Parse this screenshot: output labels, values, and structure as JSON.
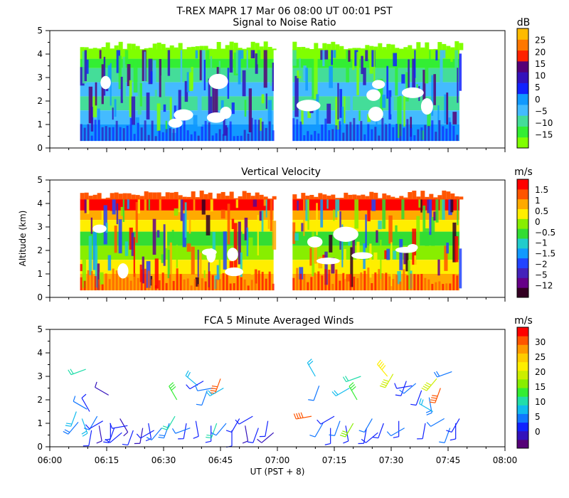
{
  "header": {
    "title": "T-REX   MAPR 17 Mar 06   08:00 UT   00:01   PST"
  },
  "colors": {
    "snr": [
      "#80ff00",
      "#33ee33",
      "#44dd99",
      "#44bbff",
      "#1199ff",
      "#1122ff",
      "#3311bb",
      "#550077",
      "#ff2200",
      "#ff7700",
      "#ffbb00"
    ],
    "velocity": [
      "#330022",
      "#660088",
      "#4422bb",
      "#2244ff",
      "#1199ff",
      "#22cccc",
      "#33dd33",
      "#88ee00",
      "#ffee00",
      "#ffaa00",
      "#ff5500",
      "#ff0000"
    ],
    "wind": [
      "#550077",
      "#3311bb",
      "#1122ff",
      "#1177ff",
      "#11bbee",
      "#22ddaa",
      "#33ee33",
      "#88ee00",
      "#ccee00",
      "#ffee00",
      "#ffcc00",
      "#ff9900",
      "#ff5500",
      "#ff0000"
    ]
  },
  "chart_data": [
    {
      "type": "heatmap",
      "title": "Signal to Noise Ratio",
      "xlabel": "",
      "ylabel": "",
      "x_ticks": [],
      "xlim": [
        "06:00",
        "08:00"
      ],
      "ylim": [
        0,
        5
      ],
      "y_ticks": [
        "0",
        "1",
        "2",
        "3",
        "4",
        "5"
      ],
      "data_gap": [
        "07:00",
        "07:05"
      ],
      "colorbar": {
        "unit": "dB",
        "labels": [
          "25",
          "20",
          "15",
          "10",
          "5",
          "0",
          "−5",
          "−10",
          "−15"
        ]
      }
    },
    {
      "type": "heatmap",
      "title": "Vertical Velocity",
      "xlabel": "",
      "ylabel": "Altitude (km)",
      "x_ticks": [],
      "xlim": [
        "06:00",
        "08:00"
      ],
      "ylim": [
        0,
        5
      ],
      "y_ticks": [
        "0",
        "1",
        "2",
        "3",
        "4",
        "5"
      ],
      "data_gap": [
        "07:00",
        "07:05"
      ],
      "colorbar": {
        "unit": "m/s",
        "labels": [
          "1.5",
          "1",
          "0.5",
          "0",
          "−0.5",
          "−1",
          "−1.5",
          "−2",
          "−5",
          "−12"
        ]
      }
    },
    {
      "type": "scatter",
      "title": "FCA 5 Minute Averaged Winds",
      "xlabel": "UT  (PST + 8)",
      "ylabel": "",
      "x_ticks": [
        "06:00",
        "06:15",
        "06:30",
        "06:45",
        "07:00",
        "07:15",
        "07:30",
        "07:45",
        "08:00"
      ],
      "xlim": [
        "06:00",
        "08:00"
      ],
      "ylim": [
        0,
        5
      ],
      "y_ticks": [
        "0",
        "1",
        "2",
        "3",
        "4",
        "5"
      ],
      "colorbar": {
        "unit": "m/s",
        "labels": [
          "30",
          "25",
          "20",
          "15",
          "10",
          "5",
          "0"
        ]
      },
      "barbs": [
        {
          "t": 7.0,
          "z": 1.5,
          "spd": 10,
          "dir": 200
        },
        {
          "t": 7.5,
          "z": 1.05,
          "spd": 8,
          "dir": 220
        },
        {
          "t": 8.5,
          "z": 1.2,
          "spd": 9,
          "dir": 160
        },
        {
          "t": 9.5,
          "z": 3.3,
          "spd": 12,
          "dir": 250
        },
        {
          "t": 9.8,
          "z": 1.6,
          "spd": 6,
          "dir": 300
        },
        {
          "t": 10.5,
          "z": 1.5,
          "spd": 4,
          "dir": 330
        },
        {
          "t": 11.0,
          "z": 0.7,
          "spd": 5,
          "dir": 190
        },
        {
          "t": 12.5,
          "z": 1.3,
          "spd": 6,
          "dir": 210
        },
        {
          "t": 13.0,
          "z": 0.9,
          "spd": 3,
          "dir": 170
        },
        {
          "t": 14.0,
          "z": 1.1,
          "spd": 4,
          "dir": 240
        },
        {
          "t": 15.5,
          "z": 2.2,
          "spd": 3,
          "dir": 300
        },
        {
          "t": 16.0,
          "z": 1.0,
          "spd": 5,
          "dir": 180
        },
        {
          "t": 17.0,
          "z": 0.8,
          "spd": 4,
          "dir": 200
        },
        {
          "t": 18.5,
          "z": 1.2,
          "spd": 3,
          "dir": 150
        },
        {
          "t": 19.0,
          "z": 0.6,
          "spd": 4,
          "dir": 230
        },
        {
          "t": 20.5,
          "z": 0.9,
          "spd": 5,
          "dir": 260
        },
        {
          "t": 22.0,
          "z": 0.7,
          "spd": 4,
          "dir": 200
        },
        {
          "t": 24.5,
          "z": 0.8,
          "spd": 3,
          "dir": 190
        },
        {
          "t": 26.0,
          "z": 1.0,
          "spd": 4,
          "dir": 170
        },
        {
          "t": 27.5,
          "z": 0.7,
          "spd": 5,
          "dir": 240
        },
        {
          "t": 29.5,
          "z": 0.8,
          "spd": 6,
          "dir": 220
        },
        {
          "t": 31.5,
          "z": 1.0,
          "spd": 8,
          "dir": 200
        },
        {
          "t": 33.0,
          "z": 1.3,
          "spd": 12,
          "dir": 210
        },
        {
          "t": 33.5,
          "z": 2.0,
          "spd": 14,
          "dir": 330
        },
        {
          "t": 36.0,
          "z": 1.0,
          "spd": 5,
          "dir": 190
        },
        {
          "t": 37.0,
          "z": 0.8,
          "spd": 6,
          "dir": 250
        },
        {
          "t": 38.5,
          "z": 1.1,
          "spd": 4,
          "dir": 170
        },
        {
          "t": 39.0,
          "z": 2.6,
          "spd": 10,
          "dir": 310
        },
        {
          "t": 40.5,
          "z": 2.8,
          "spd": 5,
          "dir": 240
        },
        {
          "t": 41.5,
          "z": 2.4,
          "spd": 6,
          "dir": 200
        },
        {
          "t": 42.5,
          "z": 0.9,
          "spd": 5,
          "dir": 180
        },
        {
          "t": 43.0,
          "z": 2.5,
          "spd": 7,
          "dir": 260
        },
        {
          "t": 44.0,
          "z": 1.0,
          "spd": 12,
          "dir": 200
        },
        {
          "t": 45.0,
          "z": 2.9,
          "spd": 28,
          "dir": 200
        },
        {
          "t": 45.8,
          "z": 2.5,
          "spd": 9,
          "dir": 240
        },
        {
          "t": 46.5,
          "z": 1.0,
          "spd": 6,
          "dir": 220
        },
        {
          "t": 48.0,
          "z": 0.7,
          "spd": 5,
          "dir": 180
        },
        {
          "t": 50.0,
          "z": 1.2,
          "spd": 4,
          "dir": 210
        },
        {
          "t": 51.5,
          "z": 0.9,
          "spd": 3,
          "dir": 170
        },
        {
          "t": 53.5,
          "z": 1.3,
          "spd": 5,
          "dir": 240
        },
        {
          "t": 55.0,
          "z": 0.8,
          "spd": 4,
          "dir": 200
        },
        {
          "t": 57.5,
          "z": 1.1,
          "spd": 4,
          "dir": 190
        },
        {
          "t": 59.0,
          "z": 0.6,
          "spd": 3,
          "dir": 230
        },
        {
          "t": 69.0,
          "z": 1.3,
          "spd": 28,
          "dir": 260
        },
        {
          "t": 70.0,
          "z": 3.0,
          "spd": 9,
          "dir": 330
        },
        {
          "t": 71.0,
          "z": 2.6,
          "spd": 7,
          "dir": 200
        },
        {
          "t": 72.0,
          "z": 1.0,
          "spd": 6,
          "dir": 210
        },
        {
          "t": 74.0,
          "z": 0.8,
          "spd": 5,
          "dir": 180
        },
        {
          "t": 75.0,
          "z": 1.3,
          "spd": 4,
          "dir": 240
        },
        {
          "t": 76.5,
          "z": 1.1,
          "spd": 6,
          "dir": 200
        },
        {
          "t": 78.0,
          "z": 0.9,
          "spd": 5,
          "dir": 170
        },
        {
          "t": 79.0,
          "z": 2.5,
          "spd": 10,
          "dir": 240
        },
        {
          "t": 80.0,
          "z": 1.0,
          "spd": 16,
          "dir": 210
        },
        {
          "t": 81.0,
          "z": 2.0,
          "spd": 14,
          "dir": 330
        },
        {
          "t": 82.0,
          "z": 3.0,
          "spd": 11,
          "dir": 250
        },
        {
          "t": 83.5,
          "z": 0.8,
          "spd": 5,
          "dir": 190
        },
        {
          "t": 85.0,
          "z": 1.2,
          "spd": 6,
          "dir": 210
        },
        {
          "t": 86.5,
          "z": 0.6,
          "spd": 4,
          "dir": 230
        },
        {
          "t": 88.0,
          "z": 1.0,
          "spd": 5,
          "dir": 200
        },
        {
          "t": 89.0,
          "z": 3.0,
          "spd": 20,
          "dir": 320
        },
        {
          "t": 90.5,
          "z": 3.1,
          "spd": 18,
          "dir": 210
        },
        {
          "t": 92.0,
          "z": 1.1,
          "spd": 5,
          "dir": 180
        },
        {
          "t": 93.5,
          "z": 0.8,
          "spd": 6,
          "dir": 240
        },
        {
          "t": 94.0,
          "z": 2.8,
          "spd": 5,
          "dir": 200
        },
        {
          "t": 95.5,
          "z": 2.6,
          "spd": 4,
          "dir": 260
        },
        {
          "t": 96.5,
          "z": 2.7,
          "spd": 6,
          "dir": 230
        },
        {
          "t": 98.0,
          "z": 2.4,
          "spd": 4,
          "dir": 200
        },
        {
          "t": 99.0,
          "z": 1.0,
          "spd": 5,
          "dir": 190
        },
        {
          "t": 100.0,
          "z": 2.1,
          "spd": 8,
          "dir": 170
        },
        {
          "t": 101.0,
          "z": 1.5,
          "spd": 9,
          "dir": 300
        },
        {
          "t": 102.0,
          "z": 2.9,
          "spd": 18,
          "dir": 220
        },
        {
          "t": 103.0,
          "z": 2.5,
          "spd": 27,
          "dir": 200
        },
        {
          "t": 104.0,
          "z": 1.2,
          "spd": 7,
          "dir": 240
        },
        {
          "t": 105.5,
          "z": 0.8,
          "spd": 6,
          "dir": 200
        },
        {
          "t": 106.0,
          "z": 3.2,
          "spd": 8,
          "dir": 250
        },
        {
          "t": 107.0,
          "z": 1.0,
          "spd": 5,
          "dir": 180
        },
        {
          "t": 108.0,
          "z": 1.2,
          "spd": 4,
          "dir": 210
        }
      ]
    }
  ]
}
